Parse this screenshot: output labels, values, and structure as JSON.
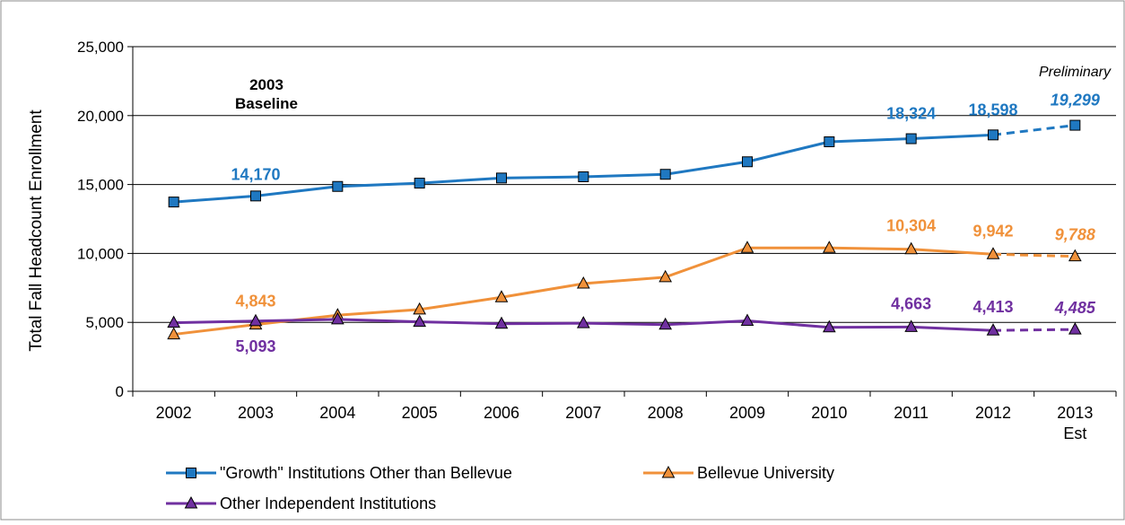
{
  "chart_data": {
    "type": "line",
    "ylabel": "Total Fall Headcount Enrollment",
    "xlabel": "",
    "ylim": [
      0,
      25000
    ],
    "yticks": [
      0,
      5000,
      10000,
      15000,
      20000,
      25000
    ],
    "ytick_labels": [
      "0",
      "5,000",
      "10,000",
      "15,000",
      "20,000",
      "25,000"
    ],
    "categories": [
      "2002",
      "2003",
      "2004",
      "2005",
      "2006",
      "2007",
      "2008",
      "2009",
      "2010",
      "2011",
      "2012",
      "2013"
    ],
    "category_sublabels": [
      "",
      "",
      "",
      "",
      "",
      "",
      "",
      "",
      "",
      "",
      "",
      "Est"
    ],
    "grid": "horizontal",
    "legend_position": "bottom",
    "baseline_annotation": [
      "2003",
      "Baseline"
    ],
    "preliminary_label": "Preliminary",
    "estimated_from_index": 10,
    "series": [
      {
        "name": "\"Growth\" Institutions Other than Bellevue",
        "color": "#1f78c1",
        "marker": "square",
        "values": [
          13730,
          14170,
          14860,
          15100,
          15470,
          15560,
          15740,
          16650,
          18100,
          18324,
          18598,
          19299
        ]
      },
      {
        "name": "Bellevue University",
        "color": "#f0913a",
        "marker": "triangle",
        "values": [
          4130,
          4843,
          5520,
          5930,
          6820,
          7810,
          8280,
          10400,
          10400,
          10304,
          9942,
          9788
        ]
      },
      {
        "name": "Other Independent Institutions",
        "color": "#7030a0",
        "marker": "triangle",
        "values": [
          4970,
          5093,
          5220,
          5040,
          4900,
          4940,
          4830,
          5110,
          4640,
          4663,
          4413,
          4485
        ]
      }
    ],
    "data_labels": [
      {
        "series": 0,
        "index": 1,
        "text": "14,170",
        "italic": false
      },
      {
        "series": 0,
        "index": 9,
        "text": "18,324",
        "italic": false
      },
      {
        "series": 0,
        "index": 10,
        "text": "18,598",
        "italic": false
      },
      {
        "series": 0,
        "index": 11,
        "text": "19,299",
        "italic": true
      },
      {
        "series": 1,
        "index": 1,
        "text": "4,843",
        "italic": false
      },
      {
        "series": 1,
        "index": 9,
        "text": "10,304",
        "italic": false
      },
      {
        "series": 1,
        "index": 10,
        "text": "9,942",
        "italic": false
      },
      {
        "series": 1,
        "index": 11,
        "text": "9,788",
        "italic": true
      },
      {
        "series": 2,
        "index": 1,
        "text": "5,093",
        "italic": false
      },
      {
        "series": 2,
        "index": 9,
        "text": "4,663",
        "italic": false
      },
      {
        "series": 2,
        "index": 10,
        "text": "4,413",
        "italic": false
      },
      {
        "series": 2,
        "index": 11,
        "text": "4,485",
        "italic": true
      }
    ]
  }
}
